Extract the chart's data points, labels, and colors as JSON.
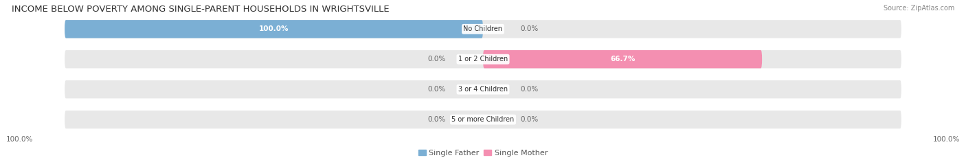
{
  "title": "INCOME BELOW POVERTY AMONG SINGLE-PARENT HOUSEHOLDS IN WRIGHTSVILLE",
  "source": "Source: ZipAtlas.com",
  "categories": [
    "No Children",
    "1 or 2 Children",
    "3 or 4 Children",
    "5 or more Children"
  ],
  "single_father": [
    100.0,
    0.0,
    0.0,
    0.0
  ],
  "single_mother": [
    0.0,
    66.7,
    0.0,
    0.0
  ],
  "father_color": "#7BAFD4",
  "mother_color": "#F48FB1",
  "bar_bg_color": "#E8E8E8",
  "father_label": "Single Father",
  "mother_label": "Single Mother",
  "axis_left_label": "100.0%",
  "axis_right_label": "100.0%",
  "title_fontsize": 9.5,
  "source_fontsize": 7,
  "bar_label_fontsize": 7.5,
  "category_fontsize": 7,
  "legend_fontsize": 8,
  "background_color": "#FFFFFF",
  "max_value": 100.0
}
